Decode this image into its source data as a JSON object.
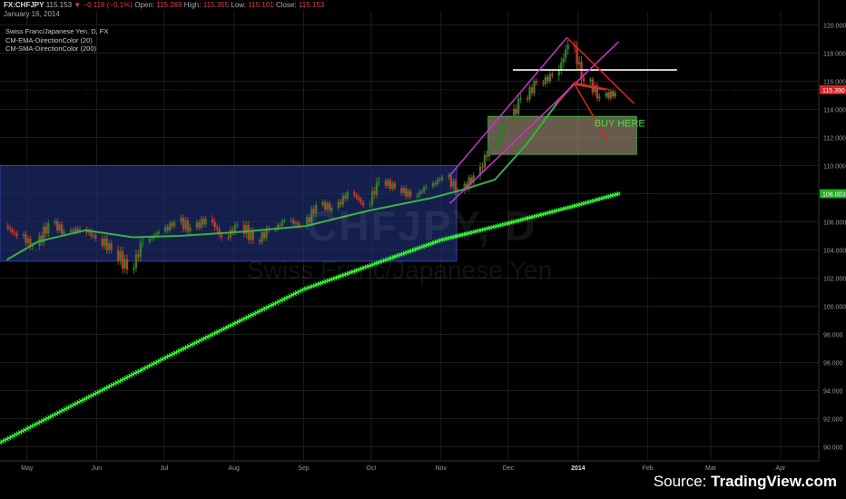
{
  "header": {
    "symbol": "FX:CHFJPY",
    "last": "115.153",
    "change_arrow": "▼",
    "change": "−0.116 (−0.1%)",
    "open_label": "Open:",
    "open": "115.269",
    "high_label": "High:",
    "high": "115.355",
    "low_label": "Low:",
    "low": "115.101",
    "close_label": "Close:",
    "close": "115.153",
    "date": "January 16, 2014"
  },
  "legend": {
    "title": "Swiss Franc/Japanese Yen, D, FX",
    "ema": "CM-EMA-DirectionColor (20)",
    "sma": "CM-SMA-DirectionColor (200)"
  },
  "watermark": {
    "symbol": "CHFJPY, D",
    "name": "Swiss Franc/Japanese Yen"
  },
  "source": {
    "prefix": "Source: ",
    "site": "TradingView.com"
  },
  "annotation_text": "BUY HERE",
  "colors": {
    "background": "#000000",
    "bull": "#2e7d2e",
    "bear": "#c0392b",
    "ema": "#3cb043",
    "sma": "#33ff33",
    "zone_blue": "#1c2d6b",
    "buy_zone": "#8a7a64",
    "buy_text": "#3fe23f",
    "channel": "#cc33cc",
    "resistance": "#ffffff",
    "downtrend": "#e02020",
    "price_tag": "#d82020",
    "sma_tag": "#22aa22"
  },
  "chart_data": {
    "type": "candlestick",
    "symbol": "FX:CHFJPY",
    "timeframe": "D",
    "x_range": [
      "2013-04-19",
      "2014-04-18"
    ],
    "x_ticks": [
      {
        "date": "2013-05-01",
        "label": "May"
      },
      {
        "date": "2013-06-01",
        "label": "Jun"
      },
      {
        "date": "2013-07-01",
        "label": "Jul"
      },
      {
        "date": "2013-08-01",
        "label": "Aug"
      },
      {
        "date": "2013-09-01",
        "label": "Sep"
      },
      {
        "date": "2013-10-01",
        "label": "Oct"
      },
      {
        "date": "2013-11-01",
        "label": "Nov"
      },
      {
        "date": "2013-12-01",
        "label": "Dec"
      },
      {
        "date": "2014-01-01",
        "label": "2014"
      },
      {
        "date": "2014-02-01",
        "label": "Feb"
      },
      {
        "date": "2014-03-01",
        "label": "Mar"
      },
      {
        "date": "2014-04-01",
        "label": "Apr"
      }
    ],
    "y_range": [
      89,
      121
    ],
    "y_ticks": [
      "90.000",
      "92.000",
      "94.000",
      "96.000",
      "98.000",
      "100.000",
      "102.000",
      "104.000",
      "106.000",
      "108.000",
      "110.000",
      "112.000",
      "114.000",
      "116.000",
      "118.000",
      "120.000"
    ],
    "grid": true,
    "price_label": "115.390",
    "price_label_value": 115.39,
    "sma_label": "108.003",
    "sma_label_value": 108.0,
    "candles": [
      {
        "date": "2013-04-22",
        "o": 105.7,
        "h": 106.4,
        "l": 104.6,
        "c": 105.0
      },
      {
        "date": "2013-04-29",
        "o": 105.0,
        "h": 105.6,
        "l": 103.6,
        "c": 104.3
      },
      {
        "date": "2013-05-06",
        "o": 104.3,
        "h": 106.3,
        "l": 104.0,
        "c": 105.9
      },
      {
        "date": "2013-05-13",
        "o": 105.9,
        "h": 106.6,
        "l": 104.9,
        "c": 105.3
      },
      {
        "date": "2013-05-20",
        "o": 105.3,
        "h": 106.0,
        "l": 104.4,
        "c": 105.5
      },
      {
        "date": "2013-05-27",
        "o": 105.5,
        "h": 105.9,
        "l": 104.2,
        "c": 104.8
      },
      {
        "date": "2013-06-03",
        "o": 104.8,
        "h": 105.5,
        "l": 103.4,
        "c": 104.0
      },
      {
        "date": "2013-06-10",
        "o": 104.0,
        "h": 104.6,
        "l": 101.9,
        "c": 102.6
      },
      {
        "date": "2013-06-17",
        "o": 102.6,
        "h": 105.1,
        "l": 102.3,
        "c": 104.6
      },
      {
        "date": "2013-06-24",
        "o": 104.6,
        "h": 105.6,
        "l": 104.0,
        "c": 105.3
      },
      {
        "date": "2013-07-01",
        "o": 105.3,
        "h": 106.4,
        "l": 104.9,
        "c": 106.0
      },
      {
        "date": "2013-07-08",
        "o": 106.0,
        "h": 106.9,
        "l": 104.9,
        "c": 105.6
      },
      {
        "date": "2013-07-15",
        "o": 105.6,
        "h": 106.6,
        "l": 104.8,
        "c": 106.2
      },
      {
        "date": "2013-07-22",
        "o": 106.2,
        "h": 106.8,
        "l": 104.6,
        "c": 104.9
      },
      {
        "date": "2013-07-29",
        "o": 104.9,
        "h": 106.1,
        "l": 104.2,
        "c": 105.8
      },
      {
        "date": "2013-08-05",
        "o": 105.8,
        "h": 106.7,
        "l": 104.3,
        "c": 104.7
      },
      {
        "date": "2013-08-12",
        "o": 104.7,
        "h": 105.9,
        "l": 104.2,
        "c": 105.4
      },
      {
        "date": "2013-08-19",
        "o": 105.4,
        "h": 106.4,
        "l": 105.0,
        "c": 106.1
      },
      {
        "date": "2013-08-26",
        "o": 106.1,
        "h": 106.8,
        "l": 105.2,
        "c": 105.7
      },
      {
        "date": "2013-09-02",
        "o": 105.7,
        "h": 107.5,
        "l": 105.4,
        "c": 107.2
      },
      {
        "date": "2013-09-09",
        "o": 107.2,
        "h": 107.9,
        "l": 106.5,
        "c": 107.0
      },
      {
        "date": "2013-09-16",
        "o": 107.0,
        "h": 108.5,
        "l": 106.7,
        "c": 108.1
      },
      {
        "date": "2013-09-23",
        "o": 108.1,
        "h": 108.4,
        "l": 106.8,
        "c": 107.2
      },
      {
        "date": "2013-09-30",
        "o": 107.2,
        "h": 109.5,
        "l": 107.0,
        "c": 108.9
      },
      {
        "date": "2013-10-07",
        "o": 108.9,
        "h": 109.3,
        "l": 107.9,
        "c": 108.4
      },
      {
        "date": "2013-10-14",
        "o": 108.4,
        "h": 109.0,
        "l": 107.4,
        "c": 107.8
      },
      {
        "date": "2013-10-21",
        "o": 107.8,
        "h": 108.8,
        "l": 107.3,
        "c": 108.5
      },
      {
        "date": "2013-10-28",
        "o": 108.5,
        "h": 109.6,
        "l": 108.2,
        "c": 109.2
      },
      {
        "date": "2013-11-04",
        "o": 109.2,
        "h": 109.5,
        "l": 107.7,
        "c": 108.2
      },
      {
        "date": "2013-11-11",
        "o": 108.2,
        "h": 109.6,
        "l": 107.9,
        "c": 109.3
      },
      {
        "date": "2013-11-18",
        "o": 109.3,
        "h": 111.6,
        "l": 109.0,
        "c": 111.3
      },
      {
        "date": "2013-11-25",
        "o": 111.3,
        "h": 113.3,
        "l": 111.0,
        "c": 112.9
      },
      {
        "date": "2013-12-02",
        "o": 112.9,
        "h": 115.2,
        "l": 112.5,
        "c": 114.8
      },
      {
        "date": "2013-12-09",
        "o": 114.8,
        "h": 116.2,
        "l": 114.4,
        "c": 115.9
      },
      {
        "date": "2013-12-16",
        "o": 115.9,
        "h": 116.9,
        "l": 115.3,
        "c": 116.4
      },
      {
        "date": "2013-12-23",
        "o": 116.4,
        "h": 119.0,
        "l": 116.0,
        "c": 118.6
      },
      {
        "date": "2013-12-30",
        "o": 118.6,
        "h": 118.9,
        "l": 115.6,
        "c": 116.0
      },
      {
        "date": "2014-01-06",
        "o": 116.0,
        "h": 116.3,
        "l": 114.3,
        "c": 114.9
      },
      {
        "date": "2014-01-13",
        "o": 114.9,
        "h": 115.6,
        "l": 114.2,
        "c": 115.2
      }
    ],
    "series": [
      {
        "name": "CM-EMA-DirectionColor (20)",
        "type": "line",
        "points": [
          [
            "2013-04-22",
            103.3
          ],
          [
            "2013-05-06",
            104.6
          ],
          [
            "2013-05-27",
            105.4
          ],
          [
            "2013-06-17",
            104.9
          ],
          [
            "2013-07-08",
            105.0
          ],
          [
            "2013-08-05",
            105.3
          ],
          [
            "2013-09-02",
            105.7
          ],
          [
            "2013-09-30",
            106.8
          ],
          [
            "2013-10-28",
            107.7
          ],
          [
            "2013-11-11",
            108.3
          ],
          [
            "2013-11-25",
            109.0
          ],
          [
            "2013-12-09",
            111.5
          ],
          [
            "2013-12-23",
            114.5
          ],
          [
            "2013-12-30",
            115.8
          ],
          [
            "2014-01-13",
            115.4
          ]
        ]
      },
      {
        "name": "CM-SMA-DirectionColor (200)",
        "type": "line",
        "points": [
          [
            "2013-04-19",
            90.3
          ],
          [
            "2013-07-01",
            96.3
          ],
          [
            "2013-09-01",
            101.2
          ],
          [
            "2013-11-01",
            104.7
          ],
          [
            "2013-12-01",
            105.9
          ],
          [
            "2014-01-01",
            107.2
          ],
          [
            "2014-01-19",
            108.0
          ]
        ]
      }
    ],
    "annotations": [
      {
        "kind": "zone",
        "label": "",
        "x": [
          "2013-04-19",
          "2013-11-08"
        ],
        "y": [
          103.2,
          110.0
        ]
      },
      {
        "kind": "zone",
        "label": "BUY HERE",
        "x": [
          "2013-11-22",
          "2014-01-27"
        ],
        "y": [
          110.8,
          113.5
        ]
      },
      {
        "kind": "hline",
        "x": [
          "2013-12-03",
          "2014-02-14"
        ],
        "y": 116.8
      },
      {
        "kind": "channel-line",
        "points": [
          [
            "2013-11-05",
            109.3
          ],
          [
            "2013-12-27",
            119.1
          ]
        ]
      },
      {
        "kind": "channel-line",
        "points": [
          [
            "2013-11-05",
            107.3
          ],
          [
            "2014-01-19",
            118.8
          ]
        ]
      },
      {
        "kind": "downtrend-line",
        "points": [
          [
            "2013-12-27",
            119.1
          ],
          [
            "2014-01-26",
            114.4
          ]
        ]
      },
      {
        "kind": "downtrend-line",
        "points": [
          [
            "2013-12-30",
            115.9
          ],
          [
            "2014-01-15",
            115.4
          ]
        ]
      },
      {
        "kind": "downtrend-line",
        "points": [
          [
            "2013-12-30",
            115.9
          ],
          [
            "2014-01-14",
            111.8
          ]
        ]
      }
    ]
  }
}
